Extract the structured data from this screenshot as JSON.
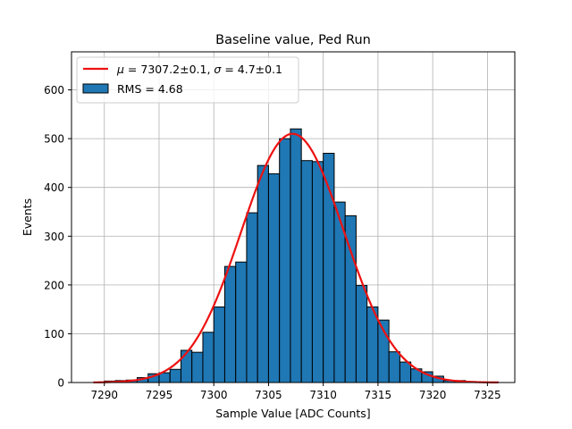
{
  "chart_data": {
    "type": "bar",
    "title": "Baseline value, Ped Run",
    "xlabel": "Sample Value [ADC Counts]",
    "ylabel": "Events",
    "xlim": [
      7287.0,
      7327.5
    ],
    "ylim": [
      0,
      678
    ],
    "xticks": [
      7290,
      7295,
      7300,
      7305,
      7310,
      7315,
      7320,
      7325
    ],
    "yticks": [
      0,
      100,
      200,
      300,
      400,
      500,
      600
    ],
    "grid": true,
    "legend": {
      "placement": "top-left",
      "entries": [
        {
          "kind": "line",
          "label": "μ = 7307.2±0.1, σ = 4.7±0.1",
          "mu_label": "μ",
          "mu_text": " = 7307.2±0.1, ",
          "sigma_label": "σ",
          "sigma_text": " = 4.7±0.1"
        },
        {
          "kind": "patch",
          "label": "RMS = 4.68"
        }
      ]
    },
    "histogram": {
      "name": "RMS = 4.68",
      "bin_start": 7290.0,
      "bin_width": 1.0,
      "counts": [
        3,
        4,
        5,
        10,
        18,
        20,
        27,
        66,
        62,
        103,
        155,
        238,
        247,
        348,
        445,
        428,
        500,
        520,
        455,
        453,
        470,
        370,
        342,
        199,
        155,
        128,
        63,
        42,
        28,
        22,
        13,
        4,
        4,
        2,
        1,
        1,
        0
      ],
      "color": "#1f77b4",
      "edgecolor": "#000000"
    },
    "fit": {
      "name": "Gaussian fit",
      "mu": 7307.2,
      "sigma": 4.7,
      "amplitude": 510,
      "x_range": [
        7289,
        7326
      ],
      "color": "#ee1111"
    }
  }
}
